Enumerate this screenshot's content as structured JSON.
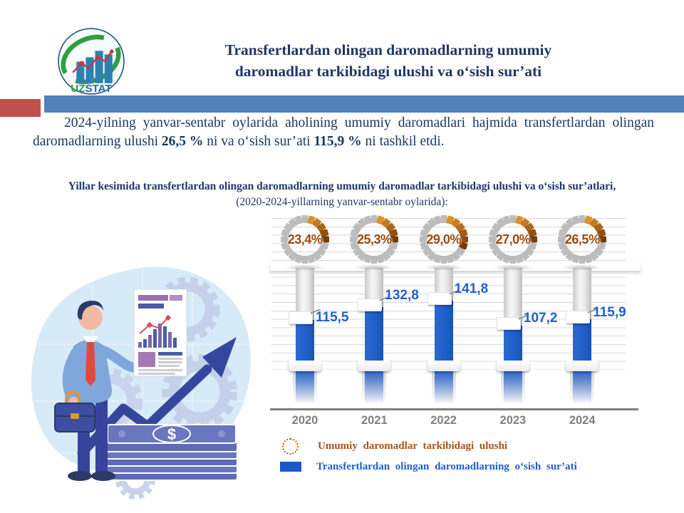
{
  "logo": {
    "uz": "UZ",
    "stat": "STAT"
  },
  "title": {
    "line1": "Transfertlardan olingan daromadlarning umumiy",
    "line2": "daromadlar tarkibidagi ulushi va o‘sish sur’ati"
  },
  "intro": {
    "part1": "2024-yilning yanvar-sentabr oylarida aholining umumiy daromadlari hajmida transfertlardan olingan daromadlarning ulushi ",
    "bold1": "26,5 %",
    "part2": " ni va o‘sish sur’ati ",
    "bold2": "115,9 %",
    "part3": " ni tashkil etdi."
  },
  "chart_heading": {
    "bold": "Yillar kesimida transfertlardan olingan daromadlarning umumiy daromadlar tarkibidagi ulushi va o‘sish sur’atlari,",
    "normal": " (2020-2024-yillarning yanvar-sentabr  oylarida):"
  },
  "chart_data": {
    "type": "bar",
    "categories": [
      "2020",
      "2021",
      "2022",
      "2023",
      "2024"
    ],
    "series": [
      {
        "name": "Umumiy  daromadlar  tarkibidagi  ulushi",
        "unit": "%",
        "style": "segmented-ring",
        "color": "#C06A18",
        "values": [
          23.4,
          25.3,
          29.0,
          27.0,
          26.5
        ],
        "labels": [
          "23,4%",
          "25,3%",
          "29,0%",
          "27,0%",
          "26,5%"
        ]
      },
      {
        "name": "Transfertlardan  olingan daromadlarning  o‘sish sur’ati",
        "unit": "%",
        "style": "bar",
        "color": "#1F5FC9",
        "values": [
          115.5,
          132.8,
          141.8,
          107.2,
          115.9
        ],
        "labels": [
          "115,5",
          "132,8",
          "141,8",
          "107,2",
          "115,9"
        ]
      }
    ],
    "legend_position": "bottom",
    "grid": true,
    "value_axis_hidden": true
  },
  "colors": {
    "band_blue": "#4F81BD",
    "accent_red": "#C0504D",
    "bar_blue": "#1F5FC9",
    "ring_gray": "#BCBCBC",
    "ring_orange_light": "#D9922D",
    "ring_orange_dark": "#7B3907",
    "pct_text": "#9C4A0B",
    "value_text": "#2261C9",
    "year_text": "#7F7F7F",
    "title_navy": "#1F3864",
    "body_navy": "#17375E"
  }
}
